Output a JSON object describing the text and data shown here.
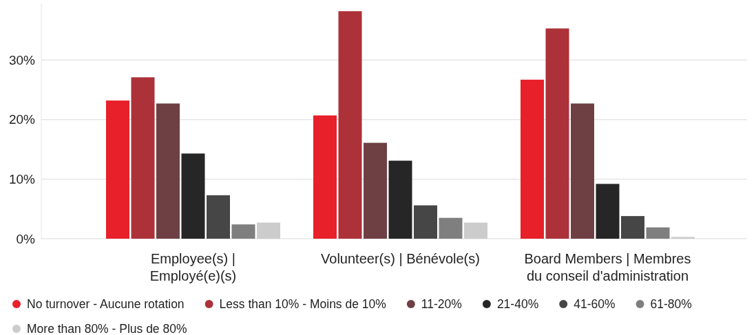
{
  "chart_data": {
    "type": "bar",
    "categories": [
      "Employee(s) | Employé(e)(s)",
      "Volunteer(s) | Bénévole(s)",
      "Board Members | Membres du conseil d'administration"
    ],
    "series": [
      {
        "name": "No turnover - Aucune rotation",
        "color": "#e8202a",
        "values": [
          23.2,
          20.7,
          26.7
        ]
      },
      {
        "name": "Less than 10% - Moins de 10%",
        "color": "#ad3138",
        "values": [
          27.1,
          38.2,
          35.3
        ]
      },
      {
        "name": "11-20%",
        "color": "#6e4043",
        "values": [
          22.7,
          16.1,
          22.7
        ]
      },
      {
        "name": "21-40%",
        "color": "#262626",
        "values": [
          14.3,
          13.1,
          9.2
        ]
      },
      {
        "name": "41-60%",
        "color": "#464646",
        "values": [
          7.3,
          5.6,
          3.8
        ]
      },
      {
        "name": "61-80%",
        "color": "#7f7f7f",
        "values": [
          2.4,
          3.5,
          1.9
        ]
      },
      {
        "name": "More than 80% - Plus de 80%",
        "color": "#cccccc",
        "values": [
          2.7,
          2.7,
          0.3
        ]
      }
    ],
    "ylim": [
      0,
      39.5
    ],
    "yticks": [
      {
        "value": 0,
        "label": "0%"
      },
      {
        "value": 10,
        "label": "10%"
      },
      {
        "value": 20,
        "label": "20%"
      },
      {
        "value": 30,
        "label": "30%"
      }
    ],
    "grid": "y",
    "legend": "bottom"
  }
}
